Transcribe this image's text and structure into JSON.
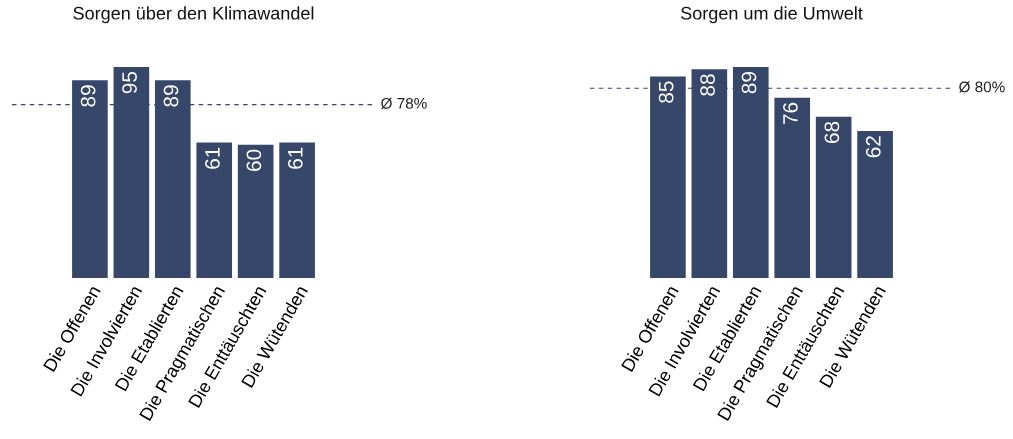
{
  "chart_data": [
    {
      "type": "bar",
      "title": "Sorgen über den Klimawandel",
      "categories": [
        "Die Offenen",
        "Die Involvierten",
        "Die Etablierten",
        "Die Pragmatischen",
        "Die Enttäuschten",
        "Die Wütenden"
      ],
      "values": [
        89,
        95,
        89,
        61,
        60,
        61
      ],
      "color": "#37476a",
      "data_labels": true,
      "ref_lines": [
        {
          "axis": "y",
          "value": 78,
          "label": "Ø 78%",
          "color": "#37476a",
          "line_style": "dashed"
        }
      ]
    },
    {
      "type": "bar",
      "title": "Sorgen um die Umwelt",
      "categories": [
        "Die Offenen",
        "Die Involvierten",
        "Die Etablierten",
        "Die Pragmatischen",
        "Die Enttäuschten",
        "Die Wütenden"
      ],
      "values": [
        85,
        88,
        89,
        76,
        68,
        62
      ],
      "color": "#37476a",
      "data_labels": true,
      "ref_lines": [
        {
          "axis": "y",
          "value": 80,
          "label": "Ø 80%",
          "color": "#37476a",
          "line_style": "dashed"
        }
      ]
    }
  ]
}
